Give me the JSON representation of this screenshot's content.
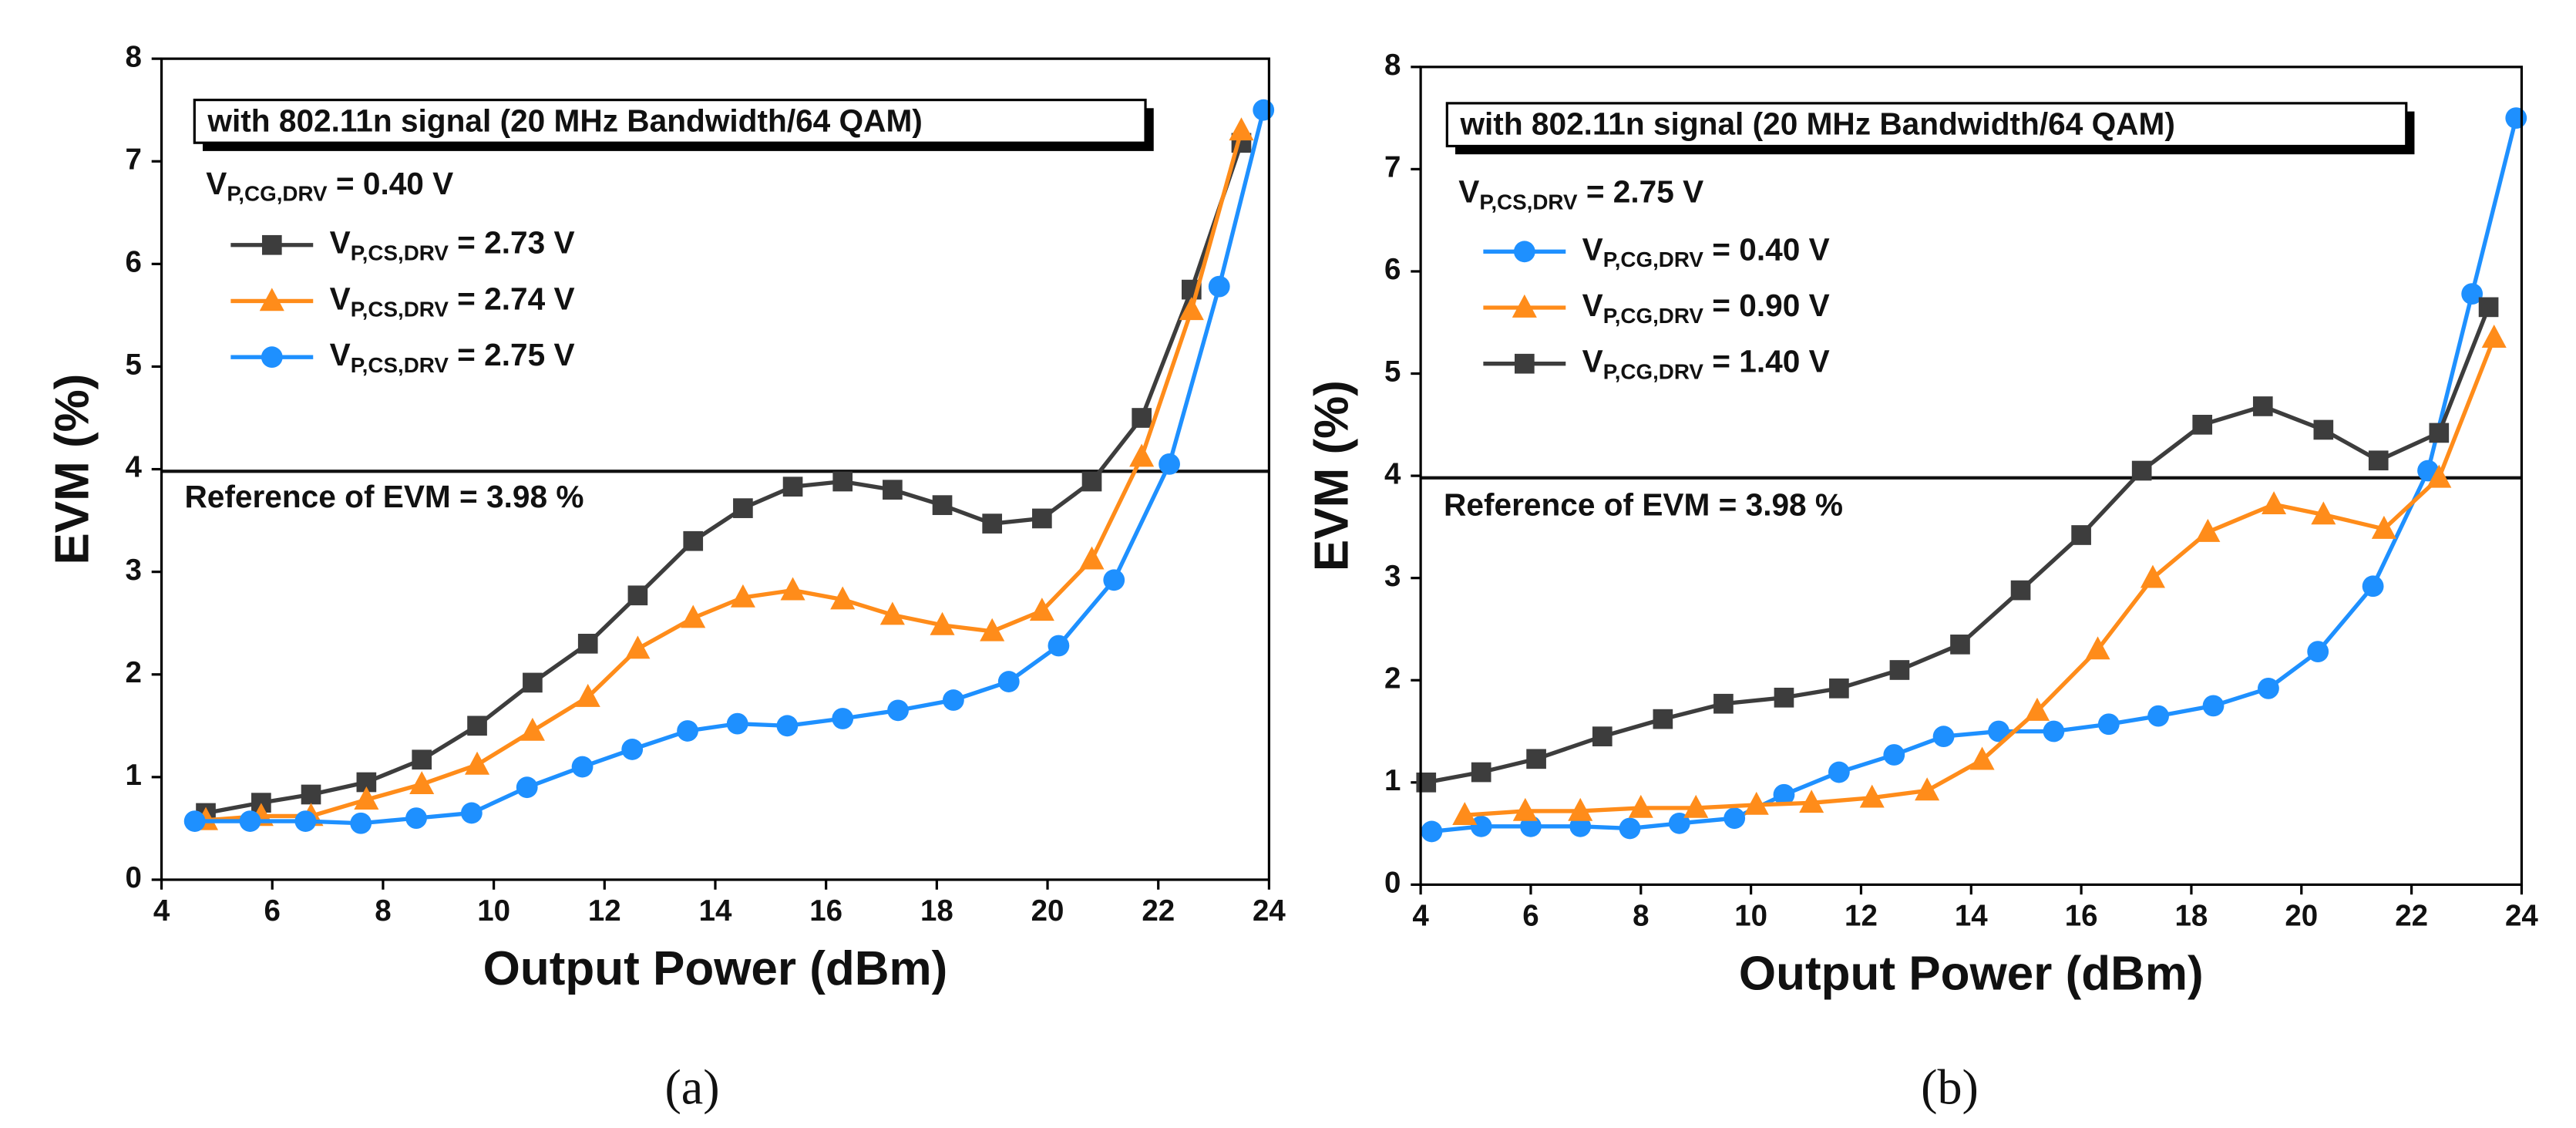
{
  "chart_data": [
    {
      "type": "line",
      "caption": "(a)",
      "xlabel": "Output Power (dBm)",
      "ylabel": "EVM (%)",
      "box_title": "with 802.11n signal (20 MHz Bandwidth/64 QAM)",
      "legend_heading": "VP,CG,DRV = 0.40 V",
      "reference": {
        "value": 3.98,
        "label": "Reference of EVM = 3.98 %"
      },
      "xlim": [
        4,
        24
      ],
      "xticks": [
        4,
        6,
        8,
        10,
        12,
        14,
        16,
        18,
        20,
        22,
        24
      ],
      "ylim": [
        0,
        8
      ],
      "yticks": [
        0,
        1,
        2,
        3,
        4,
        5,
        6,
        7,
        8
      ],
      "series": [
        {
          "name": "VP,CS,DRV = 2.73 V",
          "color": "#3d3d3d",
          "marker": "square",
          "x": [
            4.8,
            5.8,
            6.7,
            7.7,
            8.7,
            9.7,
            10.7,
            11.7,
            12.6,
            13.6,
            14.5,
            15.4,
            16.3,
            17.2,
            18.1,
            19.0,
            19.9,
            20.8,
            21.7,
            22.6,
            23.5
          ],
          "values": [
            0.65,
            0.75,
            0.83,
            0.95,
            1.17,
            1.5,
            1.92,
            2.3,
            2.77,
            3.3,
            3.62,
            3.83,
            3.88,
            3.8,
            3.65,
            3.47,
            3.52,
            3.88,
            4.5,
            5.75,
            7.18
          ]
        },
        {
          "name": "VP,CS,DRV = 2.74 V",
          "color": "#ff8c1a",
          "marker": "triangle",
          "x": [
            4.8,
            5.8,
            6.7,
            7.7,
            8.7,
            9.7,
            10.7,
            11.7,
            12.6,
            13.6,
            14.5,
            15.4,
            16.3,
            17.2,
            18.1,
            19.0,
            19.9,
            20.8,
            21.7,
            22.6,
            23.5
          ],
          "values": [
            0.58,
            0.62,
            0.62,
            0.78,
            0.93,
            1.12,
            1.45,
            1.78,
            2.25,
            2.55,
            2.75,
            2.82,
            2.73,
            2.58,
            2.48,
            2.42,
            2.62,
            3.12,
            4.12,
            5.55,
            7.3
          ]
        },
        {
          "name": "VP,CS,DRV = 2.75 V",
          "color": "#1e90ff",
          "marker": "circle",
          "x": [
            4.6,
            5.6,
            6.6,
            7.6,
            8.6,
            9.6,
            10.6,
            11.6,
            12.5,
            13.5,
            14.4,
            15.3,
            16.3,
            17.3,
            18.3,
            19.3,
            20.2,
            21.2,
            22.2,
            23.1,
            23.9
          ],
          "values": [
            0.57,
            0.57,
            0.57,
            0.55,
            0.6,
            0.65,
            0.9,
            1.1,
            1.27,
            1.45,
            1.52,
            1.5,
            1.57,
            1.65,
            1.75,
            1.93,
            2.28,
            2.92,
            4.05,
            5.78,
            7.5
          ]
        }
      ]
    },
    {
      "type": "line",
      "caption": "(b)",
      "xlabel": "Output Power (dBm)",
      "ylabel": "EVM (%)",
      "box_title": "with 802.11n signal (20 MHz Bandwidth/64 QAM)",
      "legend_heading": "VP,CS,DRV = 2.75 V",
      "reference": {
        "value": 3.98,
        "label": "Reference of EVM = 3.98 %"
      },
      "xlim": [
        4,
        24
      ],
      "xticks": [
        4,
        6,
        8,
        10,
        12,
        14,
        16,
        18,
        20,
        22,
        24
      ],
      "ylim": [
        0,
        8
      ],
      "yticks": [
        0,
        1,
        2,
        3,
        4,
        5,
        6,
        7,
        8
      ],
      "series": [
        {
          "name": "VP,CG,DRV = 0.40 V",
          "color": "#1e90ff",
          "marker": "circle",
          "x": [
            4.2,
            5.1,
            6.0,
            6.9,
            7.8,
            8.7,
            9.7,
            10.6,
            11.6,
            12.6,
            13.5,
            14.5,
            15.5,
            16.5,
            17.4,
            18.4,
            19.4,
            20.3,
            21.3,
            22.3,
            23.1,
            23.9
          ],
          "values": [
            0.52,
            0.57,
            0.57,
            0.57,
            0.55,
            0.6,
            0.65,
            0.88,
            1.1,
            1.27,
            1.45,
            1.5,
            1.5,
            1.57,
            1.65,
            1.75,
            1.92,
            2.28,
            2.92,
            4.05,
            5.78,
            7.5
          ]
        },
        {
          "name": "VP,CG,DRV = 0.90 V",
          "color": "#ff8c1a",
          "marker": "triangle",
          "x": [
            4.8,
            5.9,
            6.9,
            8.0,
            9.0,
            10.1,
            11.1,
            12.2,
            13.2,
            14.2,
            15.2,
            16.3,
            17.3,
            18.3,
            19.5,
            20.4,
            21.5,
            22.5,
            23.5
          ],
          "values": [
            0.68,
            0.72,
            0.72,
            0.75,
            0.75,
            0.78,
            0.8,
            0.85,
            0.92,
            1.22,
            1.7,
            2.3,
            3.0,
            3.45,
            3.72,
            3.62,
            3.48,
            3.98,
            5.35
          ]
        },
        {
          "name": "VP,CG,DRV = 1.40 V",
          "color": "#3d3d3d",
          "marker": "square",
          "x": [
            4.1,
            5.1,
            6.1,
            7.3,
            8.4,
            9.5,
            10.6,
            11.6,
            12.7,
            13.8,
            14.9,
            16.0,
            17.1,
            18.2,
            19.3,
            20.4,
            21.4,
            22.5,
            23.4
          ],
          "values": [
            1.0,
            1.1,
            1.23,
            1.45,
            1.62,
            1.77,
            1.83,
            1.92,
            2.1,
            2.35,
            2.88,
            3.42,
            4.05,
            4.5,
            4.68,
            4.45,
            4.15,
            4.42,
            5.65
          ]
        }
      ]
    }
  ]
}
